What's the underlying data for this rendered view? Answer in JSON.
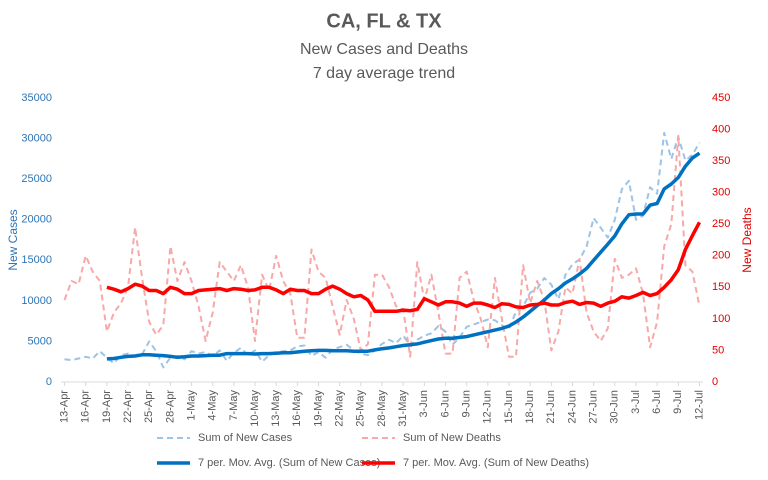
{
  "chart_data": {
    "type": "line",
    "title": "CA, FL & TX",
    "subtitle": [
      "New Cases and Deaths",
      "7 day average trend"
    ],
    "ylabel": "New Cases",
    "y2label": "New Deaths",
    "categories": [
      "13-Apr",
      null,
      null,
      "16-Apr",
      null,
      null,
      "19-Apr",
      null,
      null,
      "22-Apr",
      null,
      null,
      "25-Apr",
      null,
      null,
      "28-Apr",
      null,
      null,
      "1-May",
      null,
      null,
      "4-May",
      null,
      null,
      "7-May",
      null,
      null,
      "10-May",
      null,
      null,
      "13-May",
      null,
      null,
      "16-May",
      null,
      null,
      "19-May",
      null,
      null,
      "22-May",
      null,
      null,
      "25-May",
      null,
      null,
      "28-May",
      null,
      null,
      "31-May",
      null,
      null,
      "3-Jun",
      null,
      null,
      "6-Jun",
      null,
      null,
      "9-Jun",
      null,
      null,
      "12-Jun",
      null,
      null,
      "15-Jun",
      null,
      null,
      "18-Jun",
      null,
      null,
      "21-Jun",
      null,
      null,
      "24-Jun",
      null,
      null,
      "27-Jun",
      null,
      null,
      "30-Jun",
      null,
      null,
      "3-Jul",
      null,
      null,
      "6-Jul",
      null,
      null,
      "9-Jul",
      null,
      null,
      "12-Jul"
    ],
    "series": [
      {
        "name": "Sum of New Cases",
        "color": "#9dc3e6",
        "dashed": true,
        "width": 2,
        "values": [
          2800,
          2700,
          2900,
          3100,
          2900,
          3800,
          3000,
          2300,
          3300,
          3500,
          3200,
          3400,
          5000,
          3800,
          1800,
          3000,
          3200,
          2800,
          3800,
          3500,
          3700,
          3200,
          3900,
          2600,
          3600,
          4200,
          3300,
          3900,
          2500,
          3300,
          3700,
          3800,
          3900,
          4400,
          4500,
          3200,
          3700,
          3000,
          4000,
          4300,
          4600,
          3900,
          3500,
          3300,
          3900,
          4700,
          5200,
          4800,
          5700,
          4500,
          5200,
          5700,
          6000,
          6900,
          6200,
          4600,
          5500,
          6800,
          7100,
          7400,
          7700,
          7600,
          7000,
          6500,
          8700,
          9300,
          11000,
          11500,
          12800,
          12000,
          10200,
          13200,
          14500,
          15100,
          16700,
          20200,
          19000,
          17800,
          20000,
          23800,
          24800,
          20000,
          20500,
          24000,
          23200,
          30700,
          27500,
          30200,
          27300,
          28000,
          29500
        ]
      },
      {
        "name": "Sum of New Deaths",
        "color": "#f7a8a8",
        "dashed": true,
        "width": 2,
        "axis": "y2",
        "values": [
          130,
          160,
          155,
          200,
          175,
          160,
          80,
          110,
          125,
          150,
          245,
          165,
          95,
          75,
          90,
          215,
          160,
          190,
          160,
          120,
          65,
          110,
          190,
          175,
          160,
          185,
          150,
          65,
          170,
          145,
          200,
          160,
          140,
          70,
          70,
          210,
          175,
          165,
          120,
          75,
          130,
          100,
          50,
          60,
          170,
          170,
          150,
          120,
          115,
          40,
          190,
          130,
          170,
          110,
          45,
          45,
          165,
          175,
          130,
          100,
          55,
          165,
          100,
          40,
          40,
          185,
          125,
          160,
          130,
          50,
          80,
          150,
          140,
          195,
          110,
          80,
          65,
          85,
          195,
          165,
          170,
          180,
          140,
          55,
          95,
          215,
          250,
          390,
          185,
          175,
          120
        ]
      },
      {
        "name": "7 per. Mov. Avg. (Sum of New Cases)",
        "color": "#0070c0",
        "dashed": false,
        "width": 3.5,
        "values": [
          null,
          null,
          null,
          null,
          null,
          null,
          2850,
          2900,
          3050,
          3150,
          3200,
          3350,
          3350,
          3300,
          3250,
          3150,
          3050,
          3100,
          3200,
          3200,
          3250,
          3300,
          3300,
          3500,
          3500,
          3500,
          3500,
          3450,
          3500,
          3500,
          3550,
          3600,
          3600,
          3700,
          3800,
          3850,
          3900,
          3900,
          3850,
          3850,
          3850,
          3800,
          3800,
          3800,
          3950,
          4100,
          4200,
          4350,
          4500,
          4600,
          4700,
          4900,
          5100,
          5300,
          5400,
          5400,
          5500,
          5600,
          5800,
          6000,
          6200,
          6400,
          6600,
          6900,
          7400,
          8000,
          8700,
          9400,
          10100,
          10900,
          11500,
          12200,
          12700,
          13300,
          14000,
          15000,
          16000,
          17000,
          18000,
          19500,
          20600,
          20700,
          20700,
          21800,
          22000,
          23800,
          24400,
          25200,
          26600,
          27600,
          28200
        ]
      },
      {
        "name": "7 per. Mov. Avg. (Sum of New Deaths)",
        "color": "#ff0000",
        "dashed": false,
        "width": 3.5,
        "axis": "y2",
        "values": [
          null,
          null,
          null,
          null,
          null,
          null,
          150,
          147,
          143,
          148,
          155,
          152,
          145,
          145,
          140,
          150,
          147,
          140,
          140,
          145,
          146,
          147,
          148,
          145,
          148,
          147,
          145,
          146,
          150,
          150,
          146,
          140,
          147,
          145,
          145,
          140,
          140,
          147,
          152,
          147,
          140,
          135,
          137,
          130,
          112,
          112,
          112,
          112,
          114,
          113,
          115,
          132,
          127,
          122,
          127,
          127,
          125,
          120,
          125,
          125,
          122,
          118,
          124,
          123,
          119,
          118,
          122,
          123,
          125,
          122,
          122,
          126,
          128,
          123,
          126,
          125,
          120,
          125,
          128,
          135,
          133,
          137,
          142,
          137,
          140,
          150,
          162,
          178,
          210,
          232,
          253
        ]
      }
    ],
    "ylim": [
      0,
      35000
    ],
    "yticks": [
      0,
      5000,
      10000,
      15000,
      20000,
      25000,
      30000,
      35000
    ],
    "y2lim": [
      0,
      450
    ],
    "y2ticks": [
      0,
      50,
      100,
      150,
      200,
      250,
      300,
      350,
      400,
      450
    ],
    "ycolor": "#2e75b6",
    "y2color": "#e00000",
    "grid": false
  }
}
